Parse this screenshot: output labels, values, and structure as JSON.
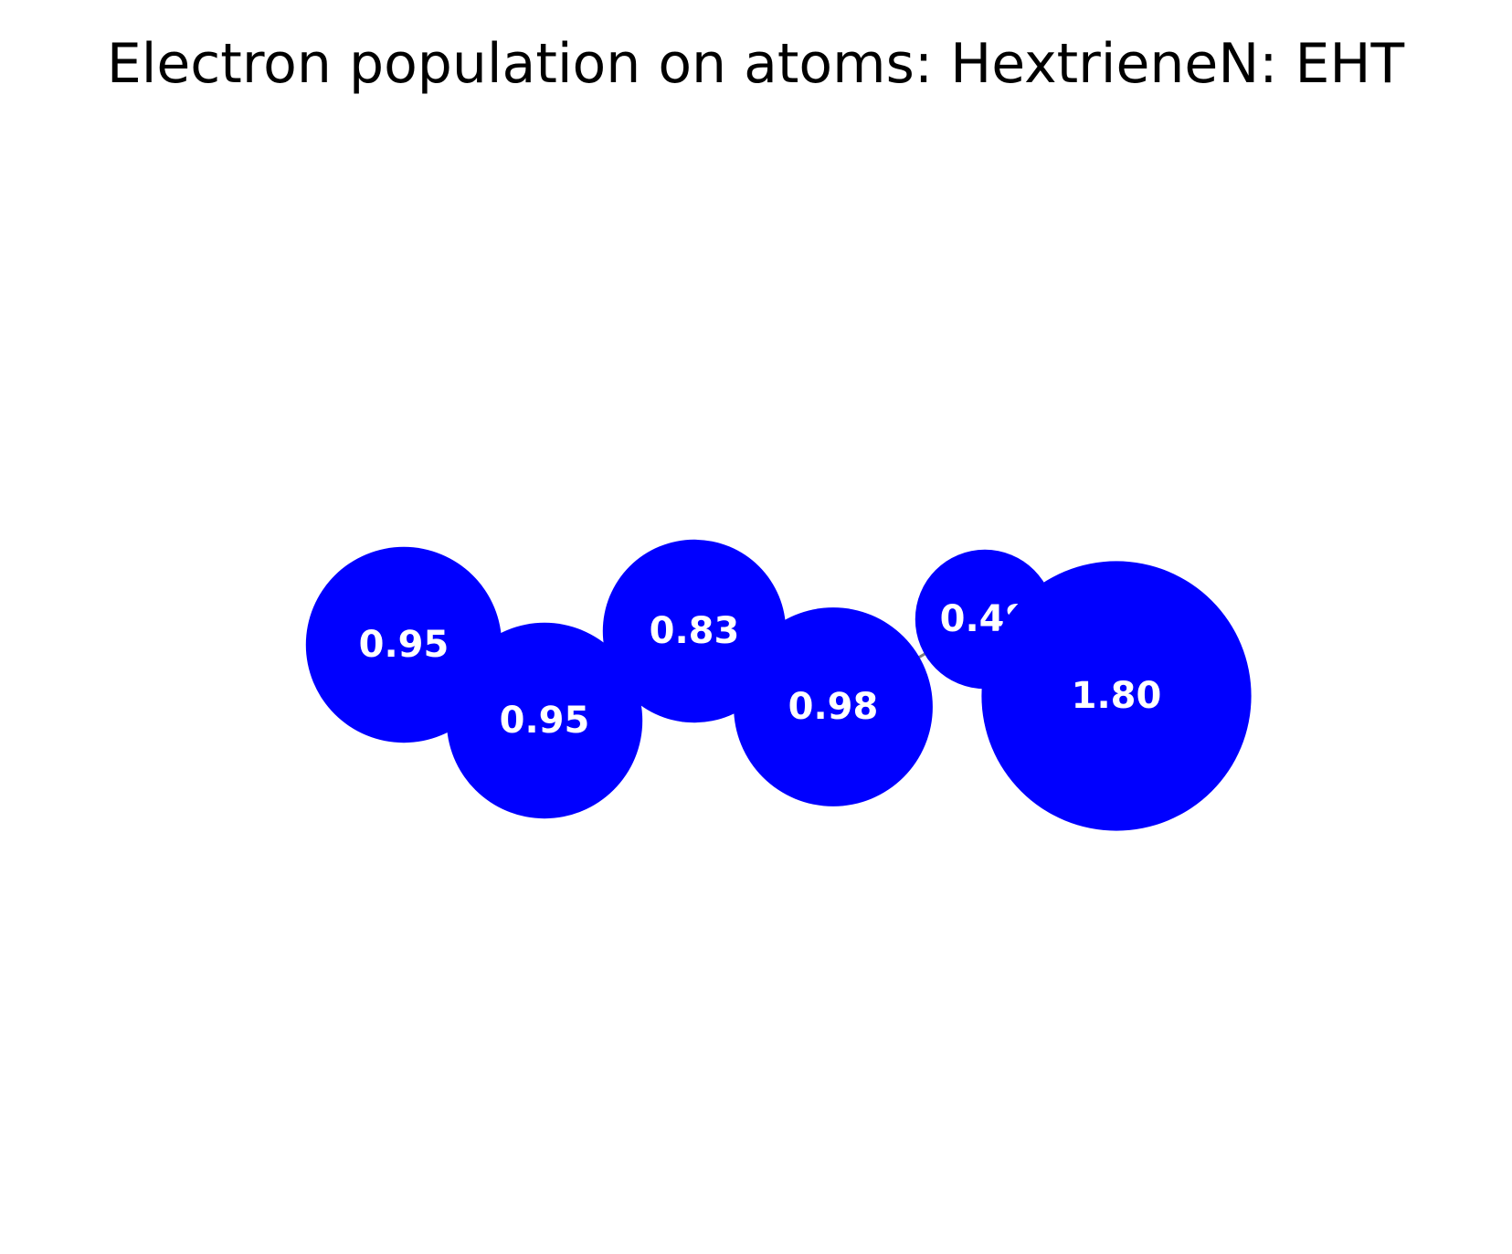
{
  "title": "Electron population on atoms: HextrieneN: EHT",
  "colors": {
    "atom_fill": "#0000ff",
    "label_text": "#ffffff",
    "bond": "#808080",
    "background": "#ffffff"
  },
  "atoms": [
    {
      "label": "0.95",
      "population": 0.95
    },
    {
      "label": "0.95",
      "population": 0.95
    },
    {
      "label": "0.83",
      "population": 0.83
    },
    {
      "label": "0.98",
      "population": 0.98
    },
    {
      "label": "0.48",
      "population": 0.48
    },
    {
      "label": "1.80",
      "population": 1.8
    }
  ],
  "bonds": [
    [
      0,
      1
    ],
    [
      1,
      2
    ],
    [
      2,
      3
    ],
    [
      3,
      4
    ],
    [
      4,
      5
    ]
  ]
}
